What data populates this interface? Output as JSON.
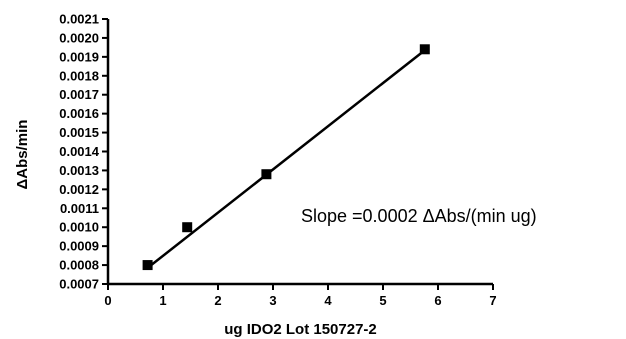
{
  "chart_data": {
    "type": "scatter",
    "title": "",
    "xlabel": "ug IDO2 Lot 150727-2",
    "ylabel": "ΔAbs/min",
    "xlim": [
      0,
      7
    ],
    "ylim": [
      0.0007,
      0.0021
    ],
    "x_ticks": [
      "0",
      "1",
      "2",
      "3",
      "4",
      "5",
      "6",
      "7"
    ],
    "y_ticks": [
      "0.0007",
      "0.0008",
      "0.0009",
      "0.0010",
      "0.0011",
      "0.0012",
      "0.0013",
      "0.0014",
      "0.0015",
      "0.0016",
      "0.0017",
      "0.0018",
      "0.0019",
      "0.0020",
      "0.0021"
    ],
    "grid": false,
    "series": [
      {
        "marker": "square",
        "color": "#000000",
        "points": [
          {
            "x": 0.72,
            "y": 0.0008
          },
          {
            "x": 1.44,
            "y": 0.001
          },
          {
            "x": 2.88,
            "y": 0.00128
          },
          {
            "x": 5.76,
            "y": 0.00194
          }
        ]
      }
    ],
    "fit_line": {
      "x": [
        0.72,
        5.76
      ],
      "y": [
        0.000785,
        0.001935
      ],
      "color": "#000000"
    },
    "annotation": "Slope =0.0002 ΔAbs/(min ug)"
  }
}
